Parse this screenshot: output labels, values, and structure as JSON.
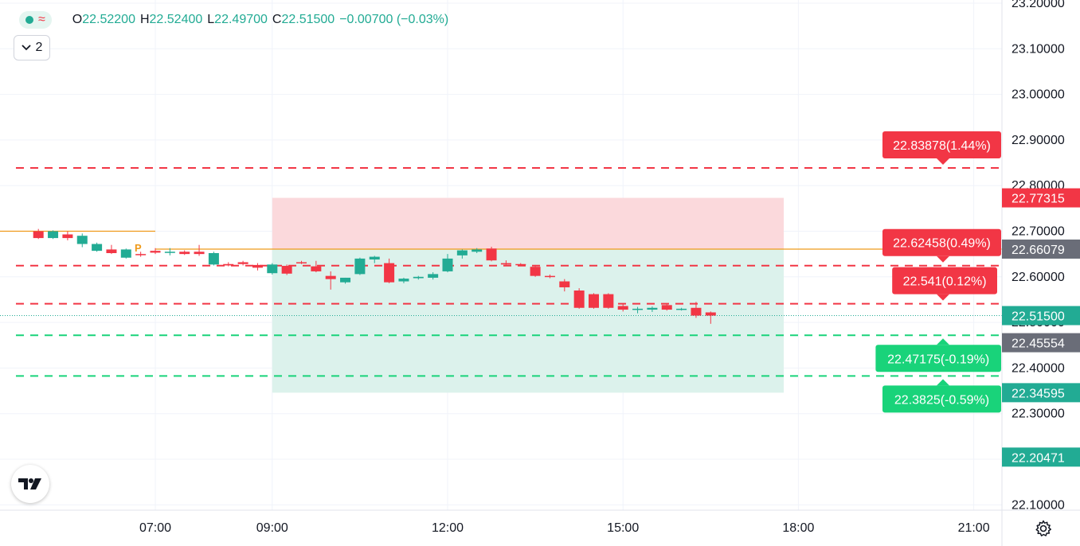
{
  "legend": {
    "open_label": "O",
    "open_value": "22.52200",
    "high_label": "H",
    "high_value": "22.52400",
    "low_label": "L",
    "low_value": "22.49700",
    "close_label": "C",
    "close_value": "22.51500",
    "change": "−0.00700 (−0.03%)",
    "collapse_count": "2"
  },
  "colors": {
    "up": "#22ab94",
    "down": "#f23645",
    "orange": "#ef9a1a",
    "grid": "#f0f3fa",
    "gray_label": "#6a6d78",
    "green_level": "#19d37a"
  },
  "icons": [
    "tradingview-logo-icon",
    "gear-icon",
    "chevron-down-icon"
  ],
  "chart_data": {
    "type": "candlestick",
    "y_axis": {
      "min": 22.05,
      "max": 23.2,
      "position": "right",
      "ticks": [
        "23.20000",
        "23.10000",
        "23.00000",
        "22.90000",
        "22.80000",
        "22.70000",
        "22.60000",
        "22.50000",
        "22.40000",
        "22.30000",
        "22.20000",
        "22.10000"
      ]
    },
    "x_axis": {
      "ticks": [
        "07:00",
        "09:00",
        "12:00",
        "15:00",
        "18:00",
        "21:00"
      ],
      "tick_hours": [
        7,
        9,
        12,
        15,
        18,
        21
      ]
    },
    "candles": [
      {
        "t": 5.0,
        "o": 22.7,
        "h": 22.705,
        "l": 22.683,
        "c": 22.685
      },
      {
        "t": 5.25,
        "o": 22.685,
        "h": 22.702,
        "l": 22.683,
        "c": 22.7
      },
      {
        "t": 5.5,
        "o": 22.693,
        "h": 22.7,
        "l": 22.68,
        "c": 22.685
      },
      {
        "t": 5.75,
        "o": 22.672,
        "h": 22.695,
        "l": 22.665,
        "c": 22.69
      },
      {
        "t": 6.0,
        "o": 22.657,
        "h": 22.675,
        "l": 22.655,
        "c": 22.672
      },
      {
        "t": 6.25,
        "o": 22.66,
        "h": 22.67,
        "l": 22.65,
        "c": 22.652
      },
      {
        "t": 6.5,
        "o": 22.642,
        "h": 22.662,
        "l": 22.64,
        "c": 22.66
      },
      {
        "t": 6.75,
        "o": 22.65,
        "h": 22.655,
        "l": 22.644,
        "c": 22.648
      },
      {
        "t": 7.0,
        "o": 22.657,
        "h": 22.663,
        "l": 22.65,
        "c": 22.653
      },
      {
        "t": 7.25,
        "o": 22.653,
        "h": 22.663,
        "l": 22.647,
        "c": 22.655
      },
      {
        "t": 7.5,
        "o": 22.655,
        "h": 22.658,
        "l": 22.648,
        "c": 22.65
      },
      {
        "t": 7.75,
        "o": 22.655,
        "h": 22.67,
        "l": 22.646,
        "c": 22.65
      },
      {
        "t": 8.0,
        "o": 22.627,
        "h": 22.655,
        "l": 22.625,
        "c": 22.652
      },
      {
        "t": 8.25,
        "o": 22.628,
        "h": 22.632,
        "l": 22.623,
        "c": 22.625
      },
      {
        "t": 8.5,
        "o": 22.632,
        "h": 22.635,
        "l": 22.625,
        "c": 22.628
      },
      {
        "t": 8.75,
        "o": 22.626,
        "h": 22.63,
        "l": 22.614,
        "c": 22.62
      },
      {
        "t": 9.0,
        "o": 22.608,
        "h": 22.63,
        "l": 22.605,
        "c": 22.627
      },
      {
        "t": 9.25,
        "o": 22.624,
        "h": 22.627,
        "l": 22.604,
        "c": 22.607
      },
      {
        "t": 9.5,
        "o": 22.632,
        "h": 22.635,
        "l": 22.628,
        "c": 22.63
      },
      {
        "t": 9.75,
        "o": 22.623,
        "h": 22.635,
        "l": 22.61,
        "c": 22.612
      },
      {
        "t": 10.0,
        "o": 22.602,
        "h": 22.612,
        "l": 22.572,
        "c": 22.595
      },
      {
        "t": 10.25,
        "o": 22.588,
        "h": 22.598,
        "l": 22.585,
        "c": 22.598
      },
      {
        "t": 10.5,
        "o": 22.606,
        "h": 22.642,
        "l": 22.604,
        "c": 22.64
      },
      {
        "t": 10.75,
        "o": 22.638,
        "h": 22.646,
        "l": 22.63,
        "c": 22.644
      },
      {
        "t": 11.0,
        "o": 22.63,
        "h": 22.64,
        "l": 22.586,
        "c": 22.588
      },
      {
        "t": 11.25,
        "o": 22.59,
        "h": 22.598,
        "l": 22.586,
        "c": 22.596
      },
      {
        "t": 11.5,
        "o": 22.597,
        "h": 22.602,
        "l": 22.594,
        "c": 22.6
      },
      {
        "t": 11.75,
        "o": 22.598,
        "h": 22.61,
        "l": 22.594,
        "c": 22.606
      },
      {
        "t": 12.0,
        "o": 22.612,
        "h": 22.65,
        "l": 22.61,
        "c": 22.64
      },
      {
        "t": 12.25,
        "o": 22.647,
        "h": 22.66,
        "l": 22.64,
        "c": 22.658
      },
      {
        "t": 12.5,
        "o": 22.655,
        "h": 22.663,
        "l": 22.652,
        "c": 22.66
      },
      {
        "t": 12.75,
        "o": 22.662,
        "h": 22.666,
        "l": 22.634,
        "c": 22.636
      },
      {
        "t": 13.0,
        "o": 22.63,
        "h": 22.636,
        "l": 22.626,
        "c": 22.627
      },
      {
        "t": 13.25,
        "o": 22.628,
        "h": 22.63,
        "l": 22.624,
        "c": 22.626
      },
      {
        "t": 13.5,
        "o": 22.622,
        "h": 22.626,
        "l": 22.6,
        "c": 22.602
      },
      {
        "t": 13.75,
        "o": 22.602,
        "h": 22.605,
        "l": 22.597,
        "c": 22.6
      },
      {
        "t": 14.0,
        "o": 22.59,
        "h": 22.595,
        "l": 22.568,
        "c": 22.577
      },
      {
        "t": 14.25,
        "o": 22.57,
        "h": 22.575,
        "l": 22.53,
        "c": 22.532
      },
      {
        "t": 14.5,
        "o": 22.562,
        "h": 22.564,
        "l": 22.53,
        "c": 22.532
      },
      {
        "t": 14.75,
        "o": 22.562,
        "h": 22.564,
        "l": 22.53,
        "c": 22.532
      },
      {
        "t": 15.0,
        "o": 22.536,
        "h": 22.54,
        "l": 22.524,
        "c": 22.528
      },
      {
        "t": 15.25,
        "o": 22.529,
        "h": 22.534,
        "l": 22.52,
        "c": 22.53
      },
      {
        "t": 15.5,
        "o": 22.528,
        "h": 22.535,
        "l": 22.523,
        "c": 22.532
      },
      {
        "t": 15.75,
        "o": 22.538,
        "h": 22.542,
        "l": 22.526,
        "c": 22.528
      },
      {
        "t": 16.0,
        "o": 22.528,
        "h": 22.532,
        "l": 22.526,
        "c": 22.53
      },
      {
        "t": 16.25,
        "o": 22.532,
        "h": 22.545,
        "l": 22.51,
        "c": 22.515
      },
      {
        "t": 16.5,
        "o": 22.522,
        "h": 22.524,
        "l": 22.497,
        "c": 22.515
      }
    ],
    "levels": [
      {
        "value": 22.83878,
        "style": "dashed",
        "color": "#f23645",
        "label": "22.83878(1.44%)"
      },
      {
        "value": 22.62458,
        "style": "dashed",
        "color": "#f23645",
        "label": "22.62458(0.49%)"
      },
      {
        "value": 22.541,
        "style": "dashed",
        "color": "#f23645",
        "label": "22.541(0.12%)"
      },
      {
        "value": 22.47175,
        "style": "dashed",
        "color": "#19d37a",
        "label": "22.47175(-0.19%)"
      },
      {
        "value": 22.3825,
        "style": "dashed",
        "color": "#19d37a",
        "label": "22.3825(-0.59%)"
      }
    ],
    "pivot_line": {
      "value": 22.66079,
      "color": "#ef9a1a",
      "marker": "P"
    },
    "prior_line": {
      "value": 22.7,
      "color": "#ef9a1a"
    },
    "position_box": {
      "entry": 22.66079,
      "target_top": 22.77315,
      "stop_bottom": 22.34595,
      "start_hour": 9.0,
      "end_hour": 17.75
    },
    "axis_labels": [
      {
        "value": 22.77315,
        "text": "22.77315",
        "color": "#f23645"
      },
      {
        "value": 22.66079,
        "text": "22.66079",
        "color": "#6a6d78"
      },
      {
        "value": 22.515,
        "text": "22.51500",
        "color": "#22ab94"
      },
      {
        "value": 22.45554,
        "text": "22.45554",
        "color": "#6a6d78"
      },
      {
        "value": 22.34595,
        "text": "22.34595",
        "color": "#22ab94"
      },
      {
        "value": 22.20471,
        "text": "22.20471",
        "color": "#22ab94"
      }
    ],
    "last_price": 22.515,
    "grid": true
  }
}
